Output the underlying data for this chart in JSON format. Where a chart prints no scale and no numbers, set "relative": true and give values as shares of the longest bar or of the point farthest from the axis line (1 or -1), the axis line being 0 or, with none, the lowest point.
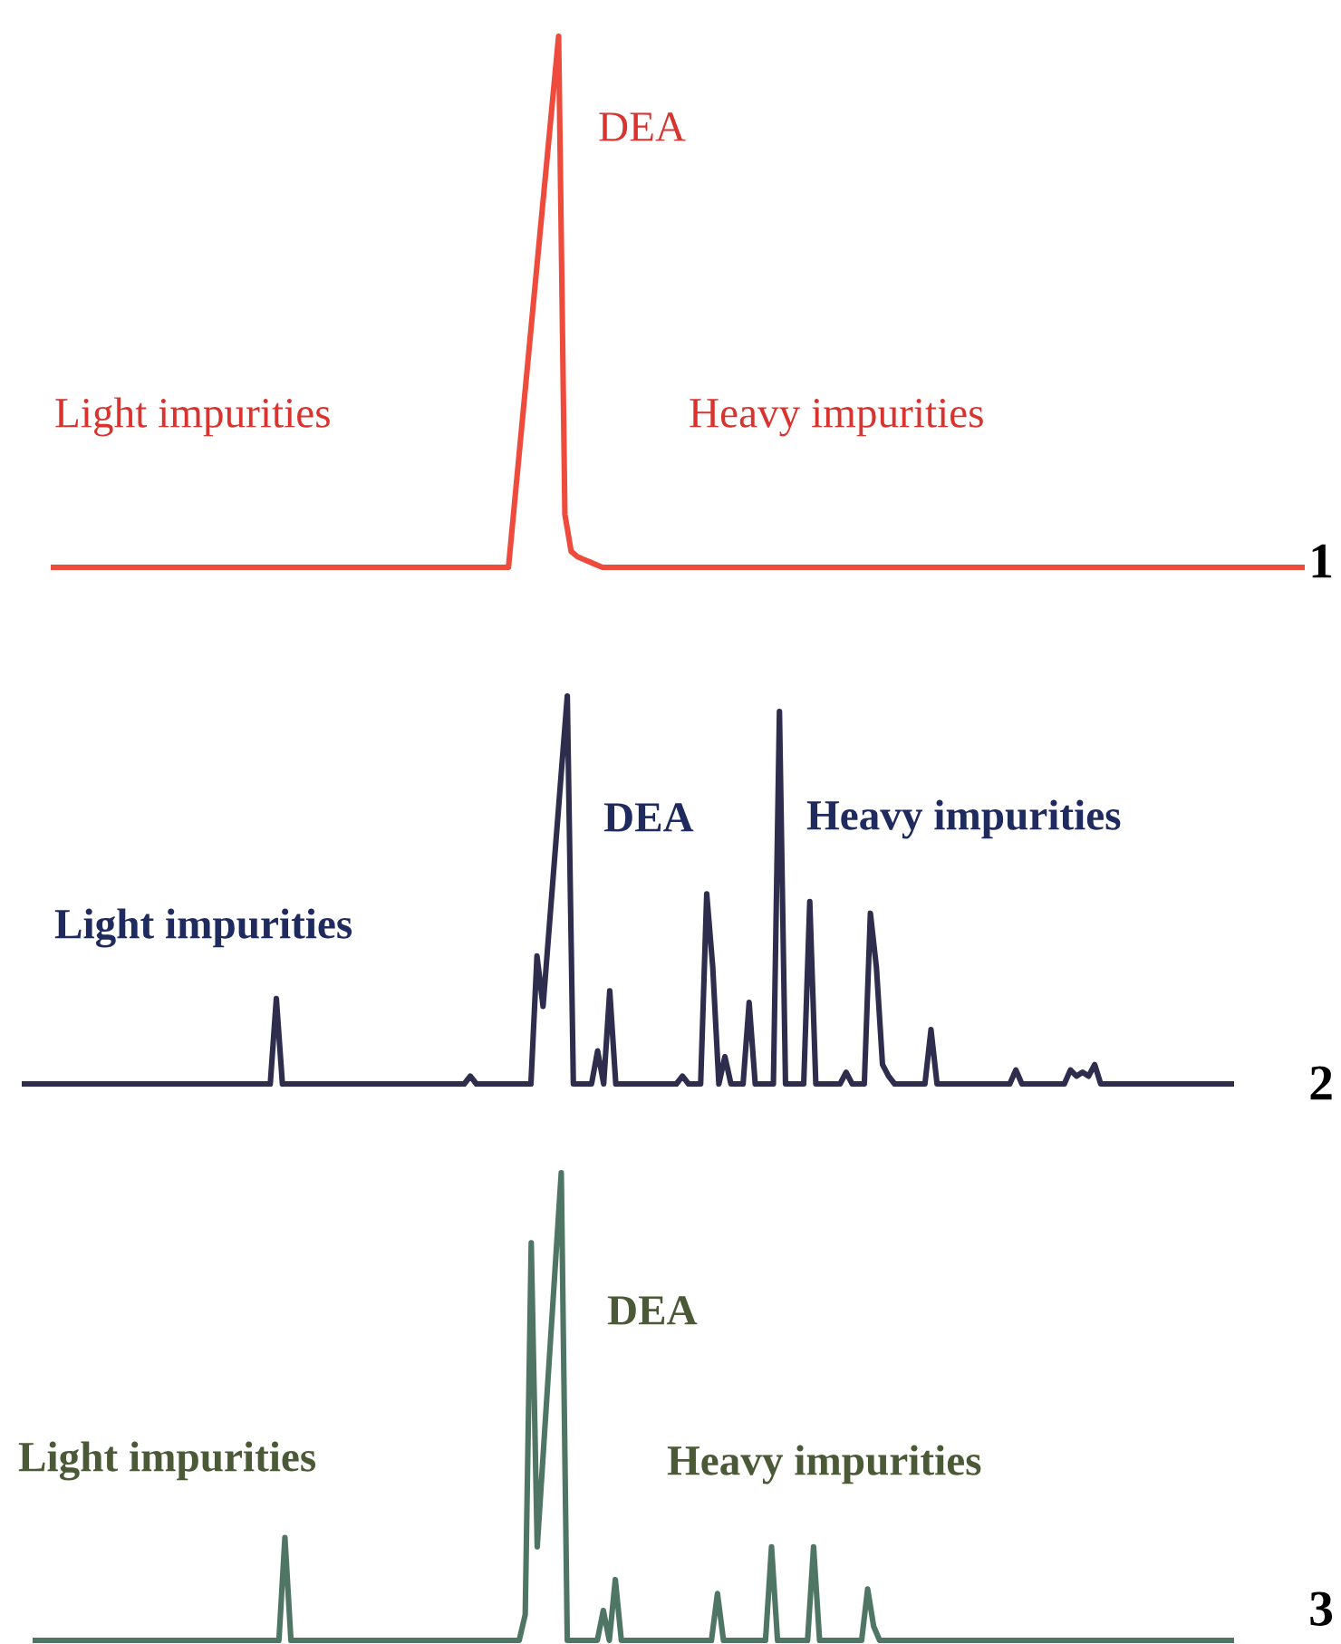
{
  "chart_data": [
    {
      "type": "line",
      "relative": true,
      "legend": false,
      "marker": "none",
      "line_style": "solid",
      "annotations": [
        "DEA",
        "Light impurities",
        "Heavy impurities",
        "1"
      ],
      "categories": [
        null,
        null,
        null,
        null,
        null,
        null,
        null,
        null,
        null,
        null,
        null,
        null,
        null,
        null,
        null,
        null,
        null,
        null,
        null,
        null,
        null,
        null,
        null,
        null,
        null,
        null,
        null,
        null,
        null,
        null,
        null,
        null,
        null,
        null,
        null,
        null,
        null,
        null,
        null,
        null,
        null,
        null,
        null,
        null,
        null,
        null,
        null,
        null,
        null,
        null,
        null,
        null,
        null,
        null,
        null,
        null,
        null,
        null,
        null,
        null,
        null,
        null,
        null,
        null,
        null,
        null,
        null,
        null,
        null,
        null,
        null,
        null,
        null,
        null,
        null,
        null,
        null,
        null,
        null,
        null,
        null,
        null,
        null,
        null,
        null,
        null,
        null,
        null,
        null,
        null,
        null,
        null,
        null,
        null,
        null,
        null,
        null,
        null,
        null,
        null,
        null,
        null,
        null,
        null,
        null,
        null,
        null,
        null,
        null,
        null,
        null,
        null,
        null,
        null,
        null,
        null,
        null,
        null,
        null,
        null,
        null,
        null,
        null,
        null,
        null,
        null,
        null,
        null,
        null,
        null,
        null,
        null,
        null,
        null,
        null,
        null,
        null,
        null,
        null,
        null,
        null,
        null,
        null,
        null,
        null,
        null,
        null,
        null,
        null,
        null,
        null,
        null,
        null,
        null,
        null,
        null,
        null,
        null,
        null,
        null,
        null,
        null,
        null,
        null,
        null,
        null,
        null,
        null,
        null,
        null,
        null,
        null,
        null,
        null,
        null,
        null,
        null,
        null,
        null,
        null,
        null,
        null,
        null,
        null,
        null,
        null,
        null,
        null,
        null,
        null,
        null,
        null,
        null,
        null,
        null,
        null,
        null,
        null,
        null,
        null,
        null
      ],
      "series": [
        {
          "color": "#ee4b3c",
          "values": [
            0,
            0,
            0,
            0,
            0,
            0,
            0,
            0,
            0,
            0,
            0,
            0,
            0,
            0,
            0,
            0,
            0,
            0,
            0,
            0,
            0,
            0,
            0,
            0,
            0,
            0,
            0,
            0,
            0,
            0,
            0,
            0,
            0,
            0,
            0,
            0,
            0,
            0,
            0,
            0,
            0,
            0,
            0,
            0,
            0,
            0,
            0,
            0,
            0,
            0,
            0,
            0,
            0,
            0,
            0,
            0,
            0,
            0,
            0,
            0,
            0,
            0,
            0,
            0,
            0,
            0,
            0,
            0,
            0,
            0,
            0,
            0,
            0,
            0,
            0.125,
            0.25,
            0.375,
            0.5,
            0.625,
            0.75,
            0.875,
            1,
            0.1,
            0.03,
            0.02,
            0.015,
            0.01,
            0.005,
            0,
            0,
            0,
            0,
            0,
            0,
            0,
            0,
            0,
            0,
            0,
            0,
            0,
            0,
            0,
            0,
            0,
            0,
            0,
            0,
            0,
            0,
            0,
            0,
            0,
            0,
            0,
            0,
            0,
            0,
            0,
            0,
            0,
            0,
            0,
            0,
            0,
            0,
            0,
            0,
            0,
            0,
            0,
            0,
            0,
            0,
            0,
            0,
            0,
            0,
            0,
            0,
            0,
            0,
            0,
            0,
            0,
            0,
            0,
            0,
            0,
            0,
            0,
            0,
            0,
            0,
            0,
            0,
            0,
            0,
            0,
            0,
            0,
            0,
            0,
            0,
            0,
            0,
            0,
            0,
            0,
            0,
            0,
            0,
            0,
            0,
            0,
            0,
            0,
            0,
            0,
            0,
            0,
            0,
            0,
            0,
            0,
            0,
            0,
            0,
            0,
            0,
            0,
            0,
            0,
            0,
            0,
            0,
            0,
            0,
            0,
            0,
            0
          ]
        }
      ]
    },
    {
      "type": "line",
      "relative": true,
      "legend": false,
      "marker": "none",
      "line_style": "solid",
      "annotations": [
        "DEA",
        "Light impurities",
        "Heavy impurities",
        "2"
      ],
      "categories": [
        null,
        null,
        null,
        null,
        null,
        null,
        null,
        null,
        null,
        null,
        null,
        null,
        null,
        null,
        null,
        null,
        null,
        null,
        null,
        null,
        null,
        null,
        null,
        null,
        null,
        null,
        null,
        null,
        null,
        null,
        null,
        null,
        null,
        null,
        null,
        null,
        null,
        null,
        null,
        null,
        null,
        null,
        null,
        null,
        null,
        null,
        null,
        null,
        null,
        null,
        null,
        null,
        null,
        null,
        null,
        null,
        null,
        null,
        null,
        null,
        null,
        null,
        null,
        null,
        null,
        null,
        null,
        null,
        null,
        null,
        null,
        null,
        null,
        null,
        null,
        null,
        null,
        null,
        null,
        null,
        null,
        null,
        null,
        null,
        null,
        null,
        null,
        null,
        null,
        null,
        null,
        null,
        null,
        null,
        null,
        null,
        null,
        null,
        null,
        null,
        null,
        null,
        null,
        null,
        null,
        null,
        null,
        null,
        null,
        null,
        null,
        null,
        null,
        null,
        null,
        null,
        null,
        null,
        null,
        null,
        null,
        null,
        null,
        null,
        null,
        null,
        null,
        null,
        null,
        null,
        null,
        null,
        null,
        null,
        null,
        null,
        null,
        null,
        null,
        null,
        null,
        null,
        null,
        null,
        null,
        null,
        null,
        null,
        null,
        null,
        null,
        null,
        null,
        null,
        null,
        null,
        null,
        null,
        null,
        null,
        null,
        null,
        null,
        null,
        null,
        null,
        null,
        null,
        null,
        null,
        null,
        null,
        null,
        null,
        null,
        null,
        null,
        null,
        null,
        null,
        null,
        null,
        null,
        null,
        null,
        null,
        null,
        null,
        null,
        null,
        null,
        null,
        null,
        null,
        null,
        null,
        null,
        null,
        null,
        null,
        null
      ],
      "series": [
        {
          "color": "#2e2d4d",
          "values": [
            0,
            0,
            0,
            0,
            0,
            0,
            0,
            0,
            0,
            0,
            0,
            0,
            0,
            0,
            0,
            0,
            0,
            0,
            0,
            0,
            0,
            0,
            0,
            0,
            0,
            0,
            0,
            0,
            0,
            0,
            0,
            0,
            0,
            0,
            0,
            0,
            0,
            0,
            0,
            0,
            0,
            0,
            0.22,
            0,
            0,
            0,
            0,
            0,
            0,
            0,
            0,
            0,
            0,
            0,
            0,
            0,
            0,
            0,
            0,
            0,
            0,
            0,
            0,
            0,
            0,
            0,
            0,
            0,
            0,
            0,
            0,
            0,
            0,
            0,
            0.02,
            0,
            0,
            0,
            0,
            0,
            0,
            0,
            0,
            0,
            0,
            0.33,
            0.2,
            0.4,
            0.6,
            0.8,
            1,
            0,
            0,
            0,
            0,
            0.085,
            0,
            0.24,
            0,
            0,
            0,
            0,
            0,
            0,
            0,
            0,
            0,
            0,
            0,
            0.02,
            0,
            0,
            0,
            0.49,
            0.3,
            0,
            0.07,
            0,
            0,
            0,
            0.21,
            0,
            0,
            0,
            0,
            0.96,
            0,
            0,
            0,
            0,
            0.47,
            0,
            0,
            0,
            0,
            0,
            0.03,
            0,
            0,
            0,
            0.44,
            0.3,
            0.05,
            0.02,
            0,
            0,
            0,
            0,
            0,
            0,
            0.14,
            0,
            0,
            0,
            0,
            0,
            0,
            0,
            0,
            0,
            0,
            0,
            0,
            0,
            0.036,
            0,
            0,
            0,
            0,
            0,
            0,
            0,
            0,
            0.036,
            0.02,
            0.03,
            0.02,
            0.05,
            0,
            0,
            0,
            0,
            0,
            0,
            0,
            0,
            0,
            0,
            0,
            0,
            0,
            0,
            0,
            0,
            0,
            0,
            0,
            0,
            0,
            0,
            0
          ]
        }
      ]
    },
    {
      "type": "line",
      "relative": true,
      "legend": false,
      "marker": "none",
      "line_style": "solid",
      "annotations": [
        "DEA",
        "Light impurities",
        "Heavy impurities",
        "3"
      ],
      "categories": [
        null,
        null,
        null,
        null,
        null,
        null,
        null,
        null,
        null,
        null,
        null,
        null,
        null,
        null,
        null,
        null,
        null,
        null,
        null,
        null,
        null,
        null,
        null,
        null,
        null,
        null,
        null,
        null,
        null,
        null,
        null,
        null,
        null,
        null,
        null,
        null,
        null,
        null,
        null,
        null,
        null,
        null,
        null,
        null,
        null,
        null,
        null,
        null,
        null,
        null,
        null,
        null,
        null,
        null,
        null,
        null,
        null,
        null,
        null,
        null,
        null,
        null,
        null,
        null,
        null,
        null,
        null,
        null,
        null,
        null,
        null,
        null,
        null,
        null,
        null,
        null,
        null,
        null,
        null,
        null,
        null,
        null,
        null,
        null,
        null,
        null,
        null,
        null,
        null,
        null,
        null,
        null,
        null,
        null,
        null,
        null,
        null,
        null,
        null,
        null,
        null,
        null,
        null,
        null,
        null,
        null,
        null,
        null,
        null,
        null,
        null,
        null,
        null,
        null,
        null,
        null,
        null,
        null,
        null,
        null,
        null,
        null,
        null,
        null,
        null,
        null,
        null,
        null,
        null,
        null,
        null,
        null,
        null,
        null,
        null,
        null,
        null,
        null,
        null,
        null,
        null,
        null,
        null,
        null,
        null,
        null,
        null,
        null,
        null,
        null,
        null,
        null,
        null,
        null,
        null,
        null,
        null,
        null,
        null,
        null,
        null,
        null,
        null,
        null,
        null,
        null,
        null,
        null,
        null,
        null,
        null,
        null,
        null,
        null,
        null,
        null,
        null,
        null,
        null,
        null,
        null,
        null,
        null,
        null,
        null,
        null,
        null,
        null,
        null,
        null,
        null,
        null,
        null,
        null,
        null,
        null,
        null,
        null,
        null,
        null,
        null
      ],
      "series": [
        {
          "color": "#4f7565",
          "values": [
            0,
            0,
            0,
            0,
            0,
            0,
            0,
            0,
            0,
            0,
            0,
            0,
            0,
            0,
            0,
            0,
            0,
            0,
            0,
            0,
            0,
            0,
            0,
            0,
            0,
            0,
            0,
            0,
            0,
            0,
            0,
            0,
            0,
            0,
            0,
            0,
            0,
            0,
            0,
            0,
            0,
            0,
            0.22,
            0,
            0,
            0,
            0,
            0,
            0,
            0,
            0,
            0,
            0,
            0,
            0,
            0,
            0,
            0,
            0,
            0,
            0,
            0,
            0,
            0,
            0,
            0,
            0,
            0,
            0,
            0,
            0,
            0,
            0,
            0,
            0,
            0,
            0,
            0,
            0,
            0,
            0,
            0,
            0.055,
            0.85,
            0.2,
            0.4,
            0.6,
            0.8,
            1,
            0,
            0,
            0,
            0,
            0,
            0,
            0.064,
            0,
            0.13,
            0,
            0,
            0,
            0,
            0,
            0,
            0,
            0,
            0,
            0,
            0,
            0,
            0,
            0,
            0,
            0,
            0.1,
            0,
            0,
            0,
            0,
            0,
            0,
            0,
            0,
            0.2,
            0,
            0,
            0,
            0,
            0,
            0,
            0.2,
            0,
            0,
            0,
            0,
            0,
            0,
            0,
            0,
            0.11,
            0.03,
            0,
            0,
            0,
            0,
            0,
            0,
            0,
            0,
            0,
            0,
            0,
            0,
            0,
            0,
            0,
            0,
            0,
            0,
            0,
            0,
            0,
            0,
            0,
            0,
            0,
            0,
            0,
            0,
            0,
            0,
            0,
            0,
            0,
            0,
            0,
            0,
            0,
            0,
            0,
            0,
            0,
            0,
            0,
            0,
            0,
            0,
            0,
            0,
            0,
            0,
            0,
            0,
            0,
            0,
            0,
            0,
            0,
            0,
            0,
            0
          ]
        }
      ]
    }
  ]
}
